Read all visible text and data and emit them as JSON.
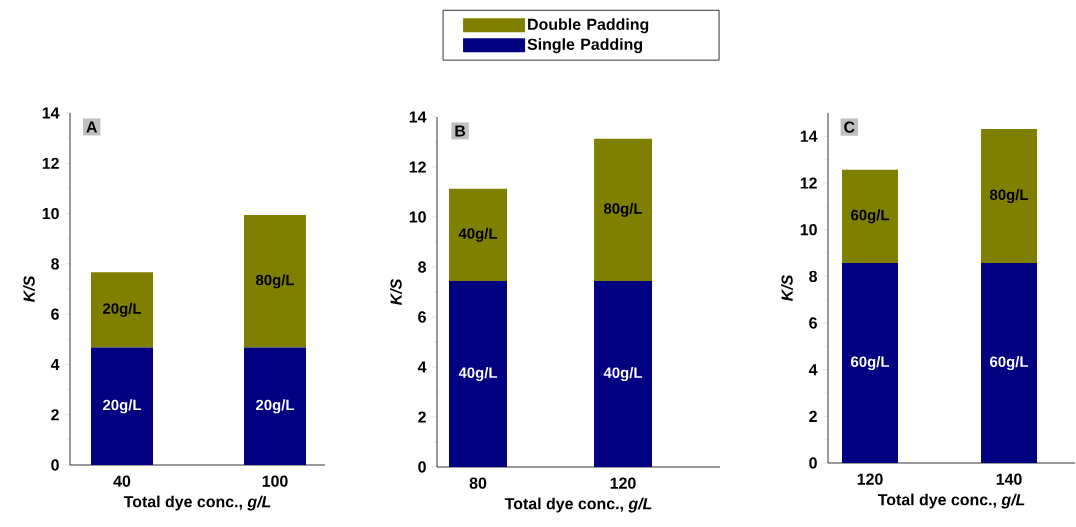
{
  "chart_data": [
    {
      "type": "bar",
      "stacked": true,
      "categories": [
        "40",
        "100"
      ],
      "xlabel": "Total dye conc., *g/L*",
      "ylabel": "K/S",
      "ylim": [
        0,
        14
      ],
      "yticks": [
        0,
        2,
        4,
        6,
        8,
        10,
        12,
        14
      ],
      "annotations": [
        "A",
        "20g/L",
        "20g/L",
        "20g/L",
        "80g/L"
      ],
      "series": [
        {
          "color": "#000080",
          "values": [
            4.67,
            4.67
          ]
        },
        {
          "color": "#808000",
          "values": [
            3.0,
            5.27
          ]
        }
      ]
    },
    {
      "type": "bar",
      "stacked": true,
      "categories": [
        "80",
        "120"
      ],
      "xlabel": "Total dye conc., *g/L*",
      "ylabel": "K/S",
      "ylim": [
        0,
        14
      ],
      "yticks": [
        0,
        2,
        4,
        6,
        8,
        10,
        12,
        14
      ],
      "legend": "top",
      "annotations": [
        "B",
        "40g/L",
        "40g/L",
        "40g/L",
        "80g/L"
      ],
      "series": [
        {
          "name": "Single Padding",
          "color": "#000080",
          "values": [
            7.44,
            7.44
          ]
        },
        {
          "name": "Double Padding",
          "color": "#808000",
          "values": [
            3.69,
            5.69
          ]
        }
      ]
    },
    {
      "type": "bar",
      "stacked": true,
      "categories": [
        "120",
        "140"
      ],
      "xlabel": "Total dye conc., *g/L*",
      "ylabel": "K/S",
      "ylim": [
        0,
        15
      ],
      "yticks": [
        0,
        2,
        4,
        6,
        8,
        10,
        12,
        14
      ],
      "annotations": [
        "C",
        "60g/L",
        "60g/L",
        "60g/L",
        "80g/L"
      ],
      "series": [
        {
          "color": "#000080",
          "values": [
            8.57,
            8.57
          ]
        },
        {
          "color": "#808000",
          "values": [
            4.0,
            5.74
          ]
        }
      ]
    }
  ]
}
